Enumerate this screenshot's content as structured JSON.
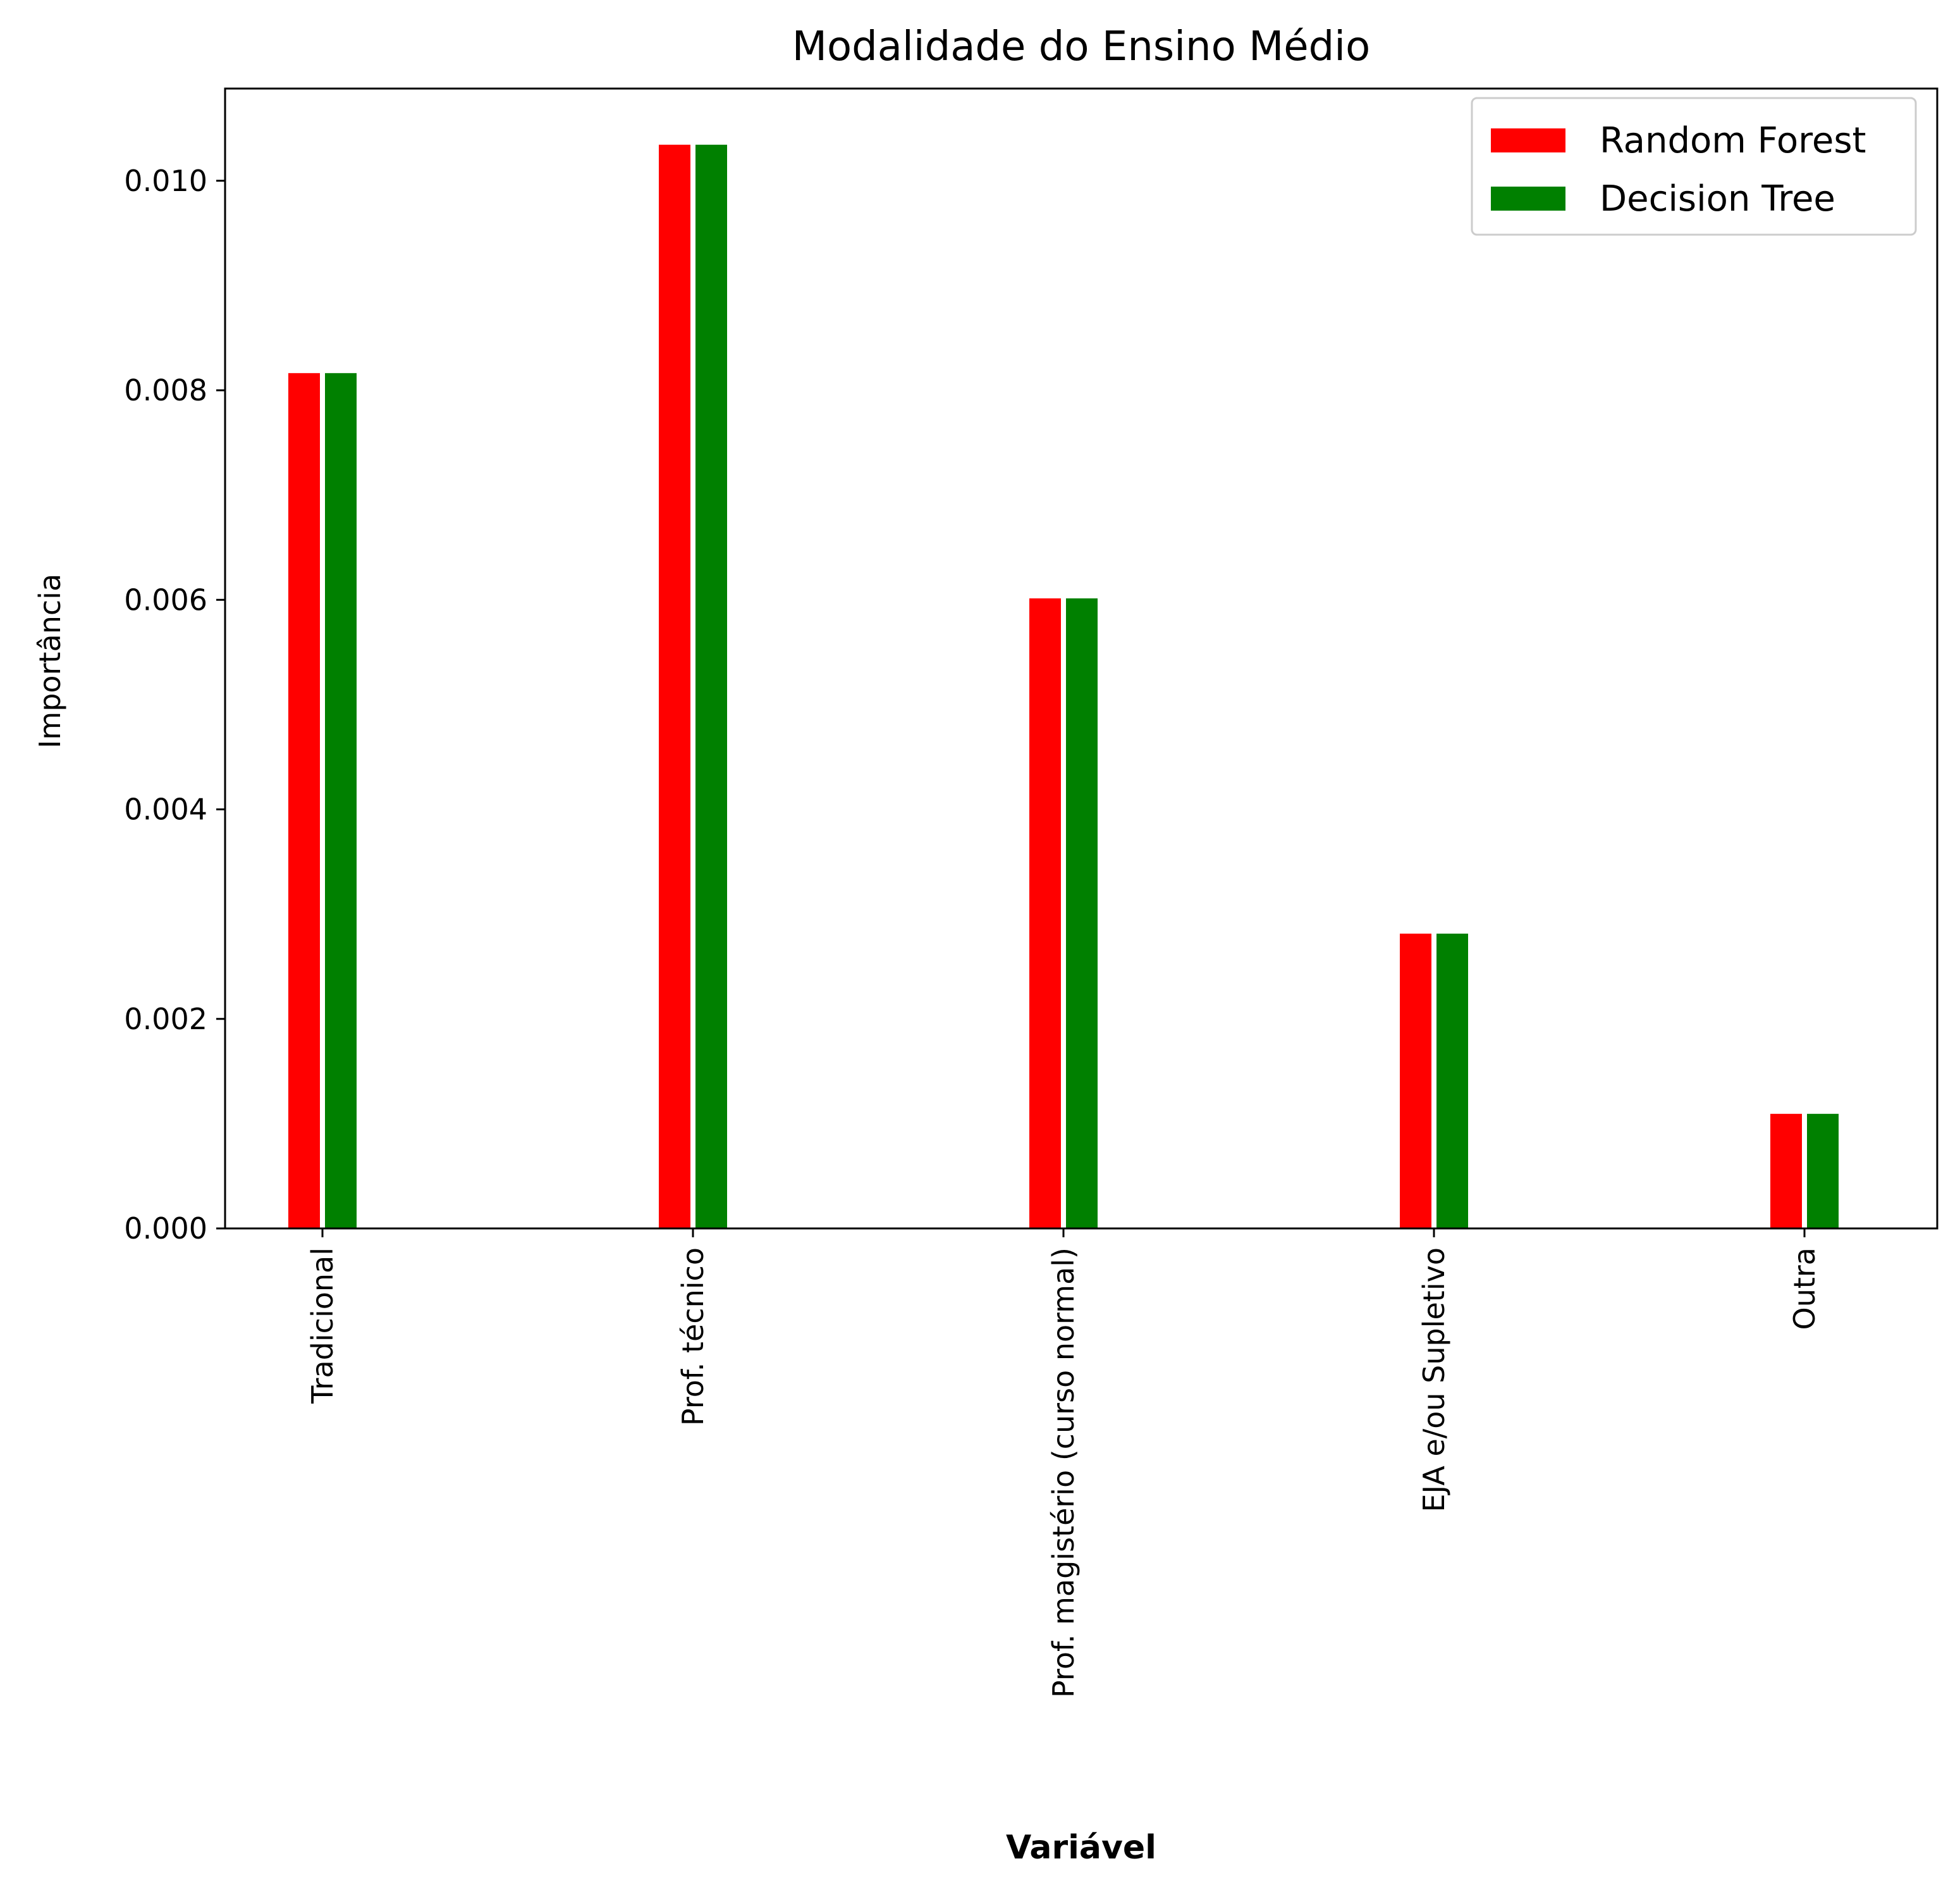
{
  "chart_data": {
    "type": "bar",
    "title": "Modalidade do Ensino Médio",
    "xlabel": "Variável",
    "ylabel": "Importância",
    "categories": [
      "Tradicional",
      "Prof. técnico",
      "Prof. magistério (curso normal)",
      "EJA e/ou Supletivo",
      "Outra"
    ],
    "series": [
      {
        "name": "Random Forest",
        "color": "#ff0000",
        "values": [
          0.00817,
          0.01035,
          0.00602,
          0.00282,
          0.0011
        ]
      },
      {
        "name": "Decision Tree",
        "color": "#008000",
        "values": [
          0.00817,
          0.01035,
          0.00602,
          0.00282,
          0.0011
        ]
      }
    ],
    "ylim": [
      0,
      0.01088
    ],
    "yticks": [
      "0.000",
      "0.002",
      "0.004",
      "0.006",
      "0.008",
      "0.010"
    ],
    "ytick_values": [
      0,
      0.002,
      0.004,
      0.006,
      0.008,
      0.01
    ],
    "legend_position": "top-right",
    "grid": false
  }
}
